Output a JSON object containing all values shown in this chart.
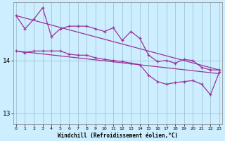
{
  "background_color": "#cceeff",
  "grid_color": "#99bbcc",
  "line_color": "#993399",
  "x_ticks": [
    0,
    1,
    2,
    3,
    4,
    5,
    6,
    7,
    8,
    9,
    10,
    11,
    12,
    13,
    14,
    15,
    16,
    17,
    18,
    19,
    20,
    21,
    22,
    23
  ],
  "xlim": [
    -0.3,
    23.3
  ],
  "ylim": [
    12.8,
    15.1
  ],
  "yticks": [
    13,
    14
  ],
  "xlabel": "Windchill (Refroidissement éolien,°C)",
  "trend1": {
    "x": [
      0,
      23
    ],
    "y": [
      14.85,
      13.82
    ]
  },
  "trend2": {
    "x": [
      0,
      23
    ],
    "y": [
      14.18,
      13.75
    ]
  },
  "series1": {
    "x": [
      0,
      1,
      2,
      3,
      4,
      5,
      6,
      7,
      8,
      9,
      10,
      11,
      12,
      13,
      14,
      15,
      16,
      17,
      18,
      19,
      20,
      21,
      22,
      23
    ],
    "y": [
      14.85,
      14.6,
      14.78,
      15.0,
      14.45,
      14.6,
      14.65,
      14.65,
      14.65,
      14.6,
      14.55,
      14.62,
      14.38,
      14.55,
      14.42,
      14.1,
      13.98,
      14.0,
      13.95,
      14.02,
      14.0,
      13.87,
      13.82,
      13.82
    ]
  },
  "series2": {
    "x": [
      0,
      1,
      2,
      3,
      4,
      5,
      6,
      7,
      8,
      9,
      10,
      11,
      12,
      13,
      14,
      15,
      16,
      17,
      18,
      19,
      20,
      21,
      22,
      23
    ],
    "y": [
      14.18,
      14.15,
      14.18,
      14.18,
      14.18,
      14.18,
      14.12,
      14.1,
      14.1,
      14.05,
      14.02,
      14.0,
      13.98,
      13.95,
      13.92,
      13.72,
      13.6,
      13.55,
      13.58,
      13.6,
      13.62,
      13.55,
      13.35,
      13.78
    ]
  }
}
